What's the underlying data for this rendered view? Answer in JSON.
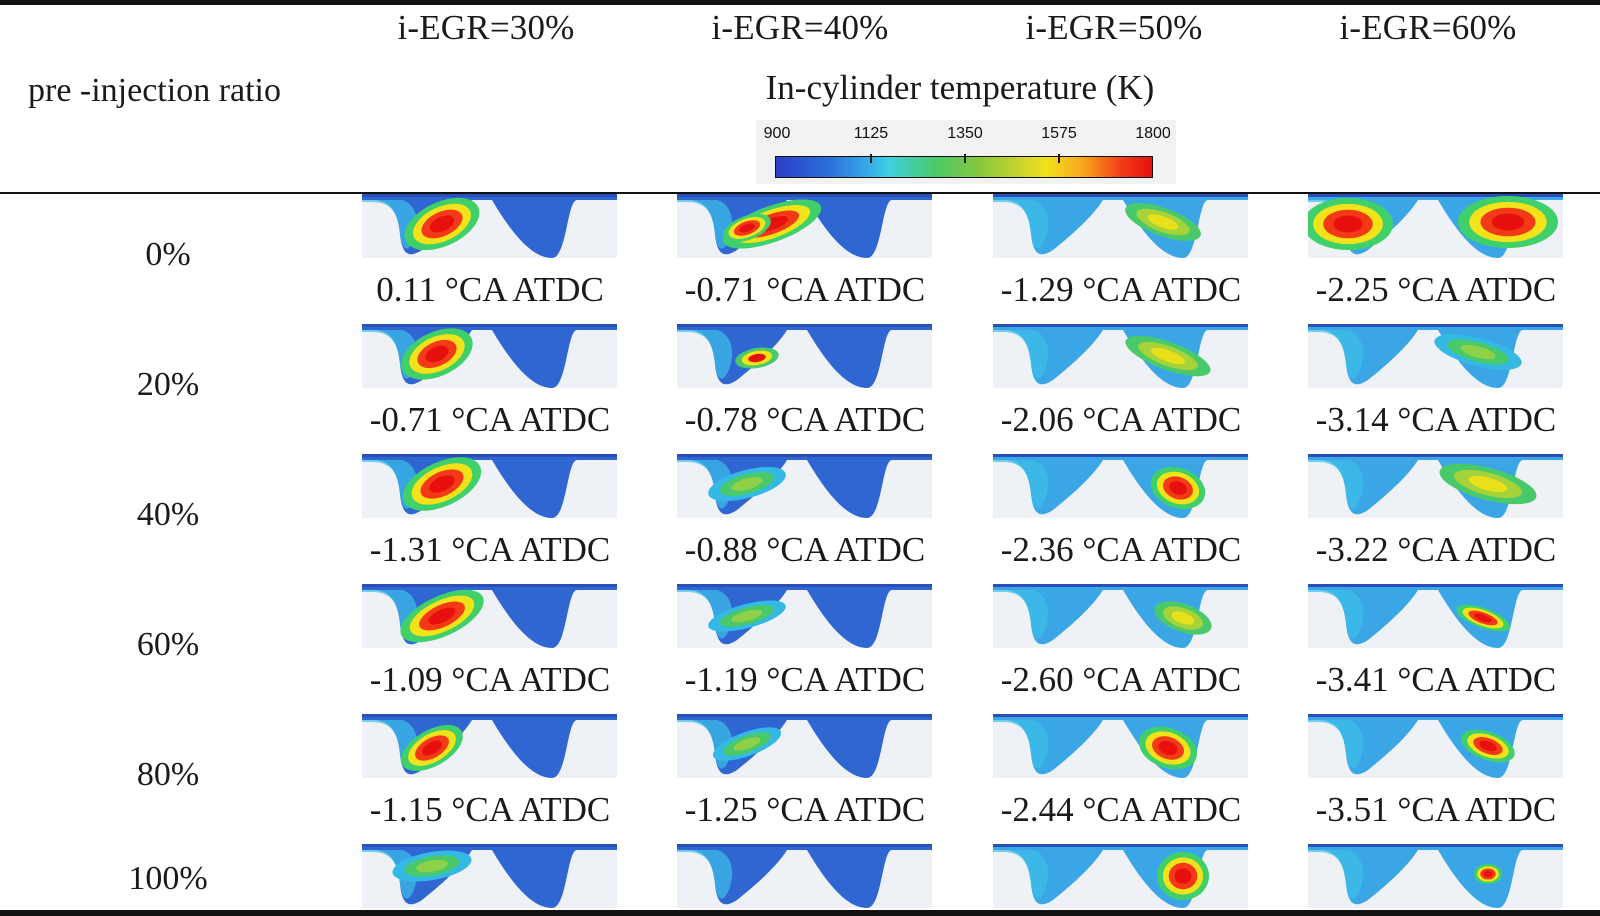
{
  "table": {
    "row_axis_label": "pre -injection ratio",
    "column_headers": [
      "i-EGR=30%",
      "i-EGR=40%",
      "i-EGR=50%",
      "i-EGR=60%"
    ],
    "colorbar": {
      "title": "In-cylinder temperature (K)",
      "min": 900,
      "max": 1800,
      "tick_labels": [
        "900",
        "1125",
        "1350",
        "1575",
        "1800"
      ],
      "colors": [
        "#2d3ec6",
        "#34a8e8",
        "#49c96a",
        "#f2e21a",
        "#e81010"
      ]
    },
    "rows": [
      {
        "label": "0%",
        "times": [
          "0.11 °CA ATDC",
          "-0.71 °CA ATDC",
          "-1.29 °CA ATDC",
          "-2.25 °CA ATDC"
        ]
      },
      {
        "label": "20%",
        "times": [
          "-0.71 °CA ATDC",
          "-0.78 °CA ATDC",
          "-2.06 °CA ATDC",
          "-3.14 °CA ATDC"
        ]
      },
      {
        "label": "40%",
        "times": [
          "-1.31 °CA ATDC",
          "-0.88 °CA ATDC",
          "-2.36 °CA ATDC",
          "-3.22 °CA ATDC"
        ]
      },
      {
        "label": "60%",
        "times": [
          "-1.09 °CA ATDC",
          "-1.19 °CA ATDC",
          "-2.60 °CA ATDC",
          "-3.41 °CA ATDC"
        ]
      },
      {
        "label": "80%",
        "times": [
          "-1.15 °CA ATDC",
          "-1.25 °CA ATDC",
          "-2.44 °CA ATDC",
          "-3.51 °CA ATDC"
        ]
      },
      {
        "label": "100%",
        "times": []
      }
    ]
  }
}
